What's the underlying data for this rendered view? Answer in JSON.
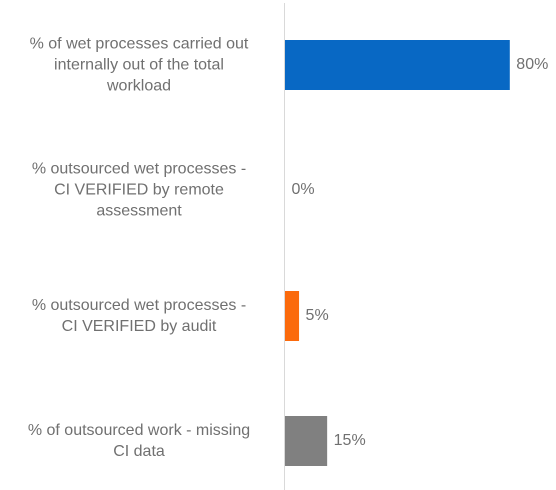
{
  "chart_data": {
    "type": "bar",
    "orientation": "horizontal",
    "categories": [
      "% of wet processes carried out internally out of the total workload",
      "% outsourced wet processes - CI VERIFIED by remote assessment",
      "% outsourced wet processes - CI VERIFIED by audit",
      "% of outsourced work - missing CI data"
    ],
    "category_lines": [
      [
        "% of wet processes carried out",
        "internally out of the total",
        "workload"
      ],
      [
        "% outsourced wet processes -",
        "CI VERIFIED by remote",
        "assessment"
      ],
      [
        "% outsourced wet processes -",
        "CI VERIFIED by audit"
      ],
      [
        "% of outsourced work - missing",
        "CI data"
      ]
    ],
    "values": [
      80,
      0,
      5,
      15
    ],
    "value_labels": [
      "80%",
      "0%",
      "5%",
      "15%"
    ],
    "colors": [
      "#0868c4",
      "#0868c4",
      "#fb6a0c",
      "#808080"
    ],
    "xlim": [
      0,
      100
    ],
    "grid": false,
    "legend": "none",
    "title": "",
    "xlabel": "",
    "ylabel": ""
  }
}
